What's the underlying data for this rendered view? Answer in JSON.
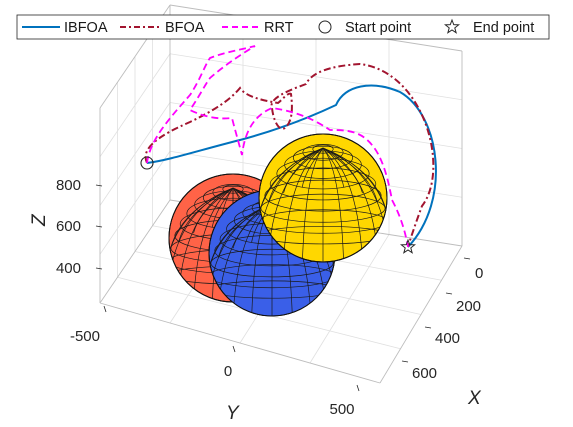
{
  "chart_data": {
    "type": "3d-line",
    "title": "",
    "xlabel": "X",
    "ylabel": "Y",
    "zlabel": "Z",
    "x_ticks": [
      "0",
      "200",
      "400",
      "600"
    ],
    "y_ticks": [
      "-500",
      "0",
      "500"
    ],
    "z_ticks": [
      "400",
      "600",
      "800"
    ],
    "xlim": [
      -50,
      700
    ],
    "ylim": [
      -600,
      600
    ],
    "zlim": [
      250,
      1050
    ],
    "grid": true,
    "legend_position": "top",
    "legend": [
      {
        "label": "IBFOA",
        "style": "solid",
        "color": "#0072BD"
      },
      {
        "label": "BFOA",
        "style": "dash-dot",
        "color": "#A2142F"
      },
      {
        "label": "RRT",
        "style": "dashed",
        "color": "#FF00FF"
      },
      {
        "label": "Start point",
        "marker": "circle"
      },
      {
        "label": "End point",
        "marker": "pentagram"
      }
    ],
    "obstacles": [
      {
        "shape": "sphere",
        "color": "#FF6347",
        "center": [
          200,
          -300,
          550
        ],
        "radius": 230
      },
      {
        "shape": "sphere",
        "color": "#3A5FE8",
        "center": [
          380,
          0,
          450
        ],
        "radius": 260
      },
      {
        "shape": "sphere",
        "color": "#FFD700",
        "center": [
          120,
          250,
          650
        ],
        "radius": 230
      }
    ],
    "start_point": [
      0,
      -600,
      850
    ],
    "end_point": [
      600,
      550,
      700
    ]
  }
}
